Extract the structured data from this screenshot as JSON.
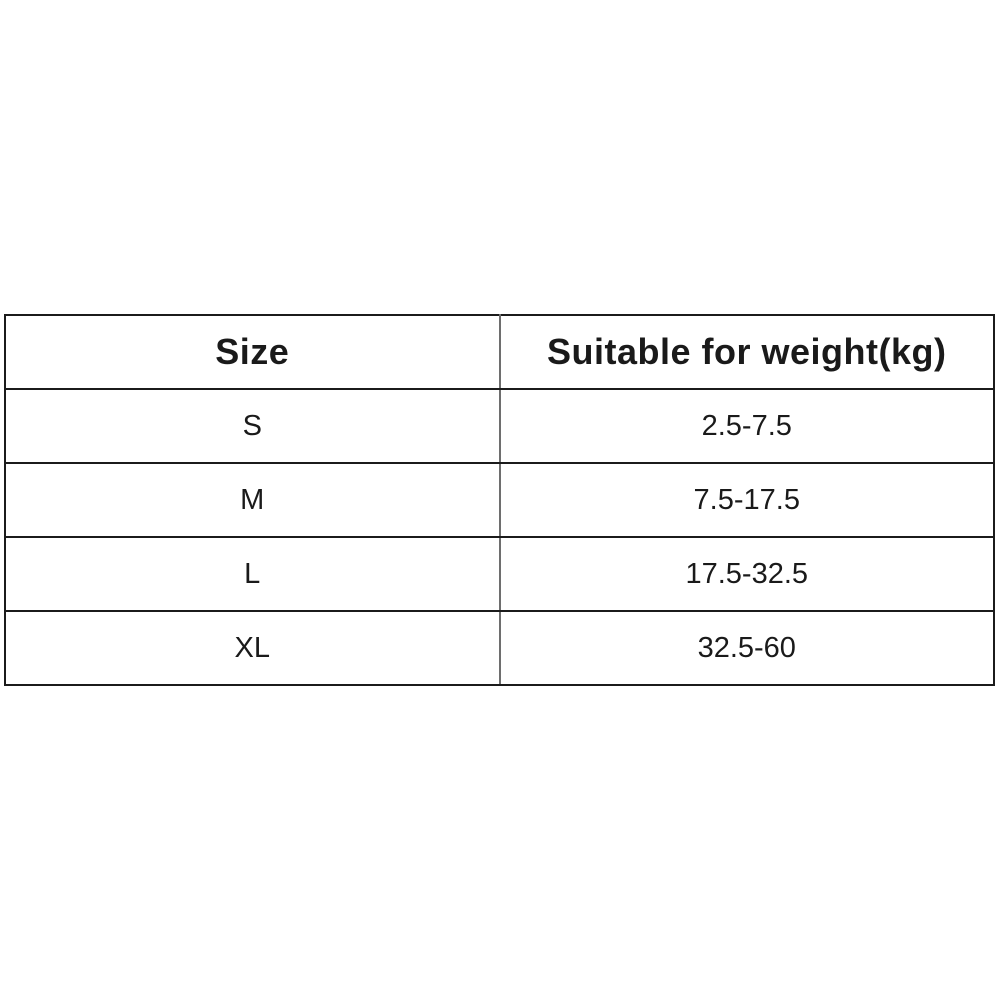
{
  "table": {
    "columns": [
      {
        "label": "Size"
      },
      {
        "label": "Suitable for weight(kg)"
      }
    ],
    "rows": [
      {
        "size": "S",
        "weight": "2.5-7.5"
      },
      {
        "size": "M",
        "weight": "7.5-17.5"
      },
      {
        "size": "L",
        "weight": "17.5-32.5"
      },
      {
        "size": "XL",
        "weight": "32.5-60"
      }
    ]
  },
  "colors": {
    "background": "#ffffff",
    "outer_border": "#1b1b1b",
    "row_border": "#1b1b1b",
    "column_divider": "#6e6e6e",
    "text": "#1a1a1a"
  }
}
